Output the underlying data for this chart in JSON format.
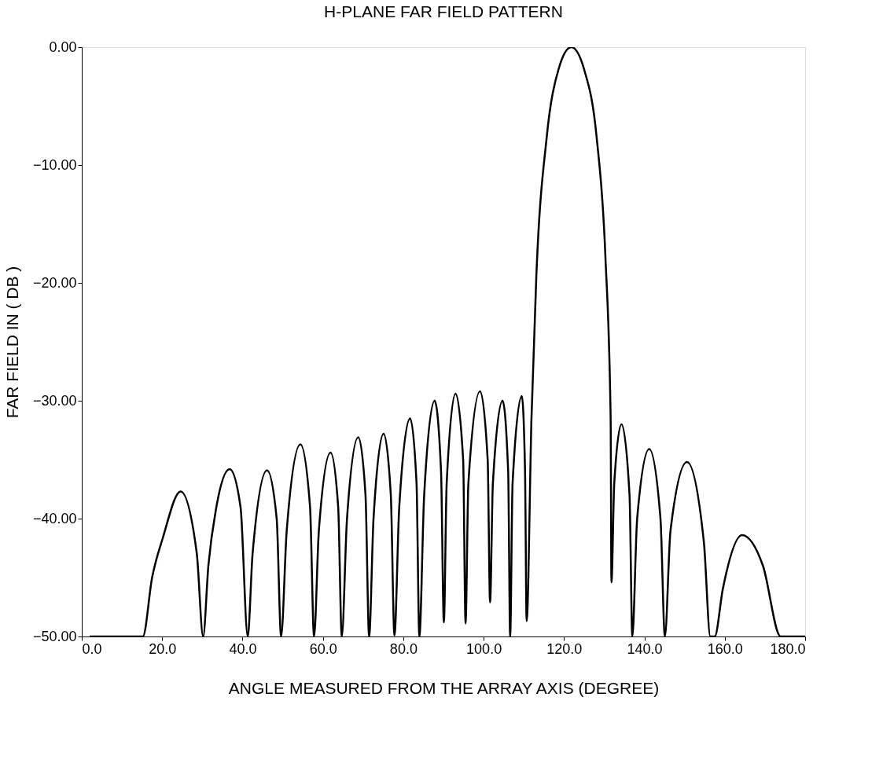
{
  "chart_data": {
    "type": "line",
    "title": "H-PLANE FAR FIELD PATTERN",
    "xlabel": "ANGLE MEASURED FROM THE ARRAY AXIS (DEGREE)",
    "ylabel": "FAR FIELD IN ( DB )",
    "xlim": [
      0,
      180
    ],
    "ylim": [
      -50,
      0
    ],
    "xticks": [
      {
        "value": 0,
        "label": "0.0"
      },
      {
        "value": 20,
        "label": "20.0"
      },
      {
        "value": 40,
        "label": "40.0"
      },
      {
        "value": 60,
        "label": "60.0"
      },
      {
        "value": 80,
        "label": "80.0"
      },
      {
        "value": 100,
        "label": "100.0"
      },
      {
        "value": 120,
        "label": "120.0"
      },
      {
        "value": 140,
        "label": "140.0"
      },
      {
        "value": 160,
        "label": "160.0"
      },
      {
        "value": 180,
        "label": "180.0"
      }
    ],
    "yticks": [
      {
        "value": 0,
        "label": "0.00"
      },
      {
        "value": -10,
        "label": "−10.00"
      },
      {
        "value": -20,
        "label": "−20.00"
      },
      {
        "value": -30,
        "label": "−30.00"
      },
      {
        "value": -40,
        "label": "−40.00"
      },
      {
        "value": -50,
        "label": "−50.00"
      }
    ],
    "grid": false,
    "marker": "none",
    "line_style": "solid",
    "series": [
      {
        "color": "#000000",
        "x": [
          2,
          15.2,
          17.5,
          20.2,
          24.6,
          28.6,
          30.2,
          31.5,
          33.5,
          36.8,
          39.5,
          41.3,
          42.5,
          46.1,
          48.5,
          49.6,
          51,
          54.4,
          56.8,
          57.8,
          59,
          61.9,
          63.8,
          64.7,
          66,
          68.8,
          70.6,
          71.5,
          72.6,
          75.1,
          76.9,
          77.8,
          79,
          81.7,
          83.3,
          84.0,
          85.2,
          87.8,
          89.4,
          90.1,
          90.8,
          93.0,
          94.9,
          95.5,
          96.2,
          99.1,
          101.0,
          101.6,
          102.3,
          104.7,
          106.1,
          106.6,
          107.2,
          109.5,
          110.3,
          110.7,
          111.9,
          113.1,
          115.7,
          118.7,
          121.8,
          125.1,
          128.1,
          130.3,
          131.6,
          131.8,
          132.5,
          134.3,
          136.3,
          137.0,
          138.2,
          141.2,
          144.0,
          145.1,
          146.5,
          150.6,
          154.8,
          156.4,
          157.5,
          159.5,
          164.3,
          169.5,
          173.9,
          180
        ],
        "values": [
          -50,
          -50,
          -45,
          -41.6,
          -37.7,
          -42.9,
          -50,
          -44,
          -39,
          -35.8,
          -39,
          -50,
          -43,
          -35.9,
          -40,
          -50,
          -41,
          -33.7,
          -39,
          -50,
          -41,
          -34.4,
          -39,
          -50,
          -40,
          -33.1,
          -38,
          -50,
          -40,
          -32.8,
          -38,
          -49.9,
          -39,
          -31.5,
          -37,
          -50,
          -38,
          -30.0,
          -36,
          -48.8,
          -37,
          -29.4,
          -35,
          -48.9,
          -37,
          -29.2,
          -35,
          -47.1,
          -37,
          -30.0,
          -36,
          -50,
          -37,
          -29.6,
          -36,
          -48.7,
          -31.5,
          -19.5,
          -7.6,
          -1.8,
          0,
          -2.0,
          -7.6,
          -17.8,
          -31.5,
          -45.4,
          -37,
          -32.0,
          -38,
          -50,
          -40,
          -34.1,
          -40,
          -50,
          -41,
          -35.2,
          -42,
          -50,
          -50,
          -46,
          -41.4,
          -44,
          -50,
          -50
        ]
      }
    ]
  }
}
